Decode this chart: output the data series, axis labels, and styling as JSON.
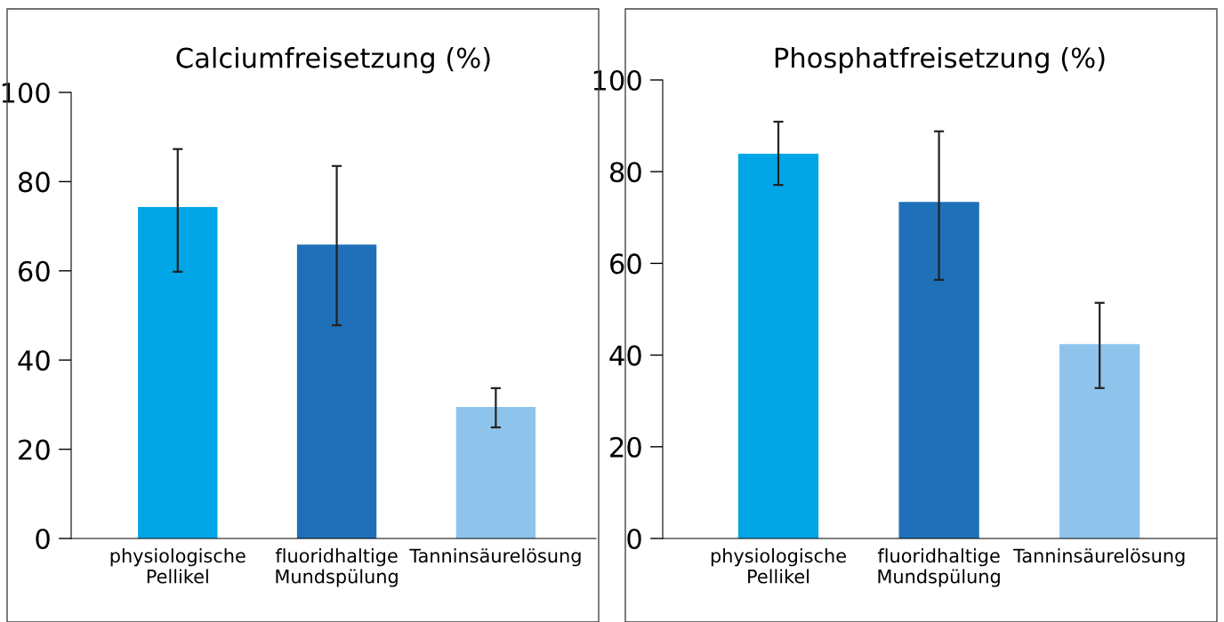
{
  "chart_data": [
    {
      "type": "bar",
      "title": "Calciumfreisetzung (%)",
      "categories": [
        "physiologische\nPellikel",
        "fluoridhaltige\nMundspülung",
        "Tanninsäurelösung"
      ],
      "values": [
        74.3,
        65.9,
        29.5
      ],
      "colors": [
        "#00a6e6",
        "#1f70b8",
        "#8ec4ec"
      ],
      "errors": [
        [
          59.8,
          87.3
        ],
        [
          47.8,
          83.5
        ],
        [
          24.9,
          33.7
        ]
      ],
      "ylim": [
        0,
        100
      ],
      "yticks": [
        0,
        20,
        40,
        60,
        80,
        100
      ],
      "grid": false,
      "legend": false
    },
    {
      "type": "bar",
      "title": "Phosphatfreisetzung (%)",
      "categories": [
        "physiologische\nPellikel",
        "fluoridhaltige\nMundspülung",
        "Tanninsäurelösung"
      ],
      "values": [
        83.9,
        73.4,
        42.4
      ],
      "colors": [
        "#00a6e6",
        "#1f70b8",
        "#8ec4ec"
      ],
      "errors": [
        [
          77.1,
          90.9
        ],
        [
          56.4,
          88.8
        ],
        [
          32.8,
          51.4
        ]
      ],
      "ylim": [
        0,
        100
      ],
      "yticks": [
        0,
        20,
        40,
        60,
        80,
        100
      ],
      "grid": false,
      "legend": false
    }
  ]
}
